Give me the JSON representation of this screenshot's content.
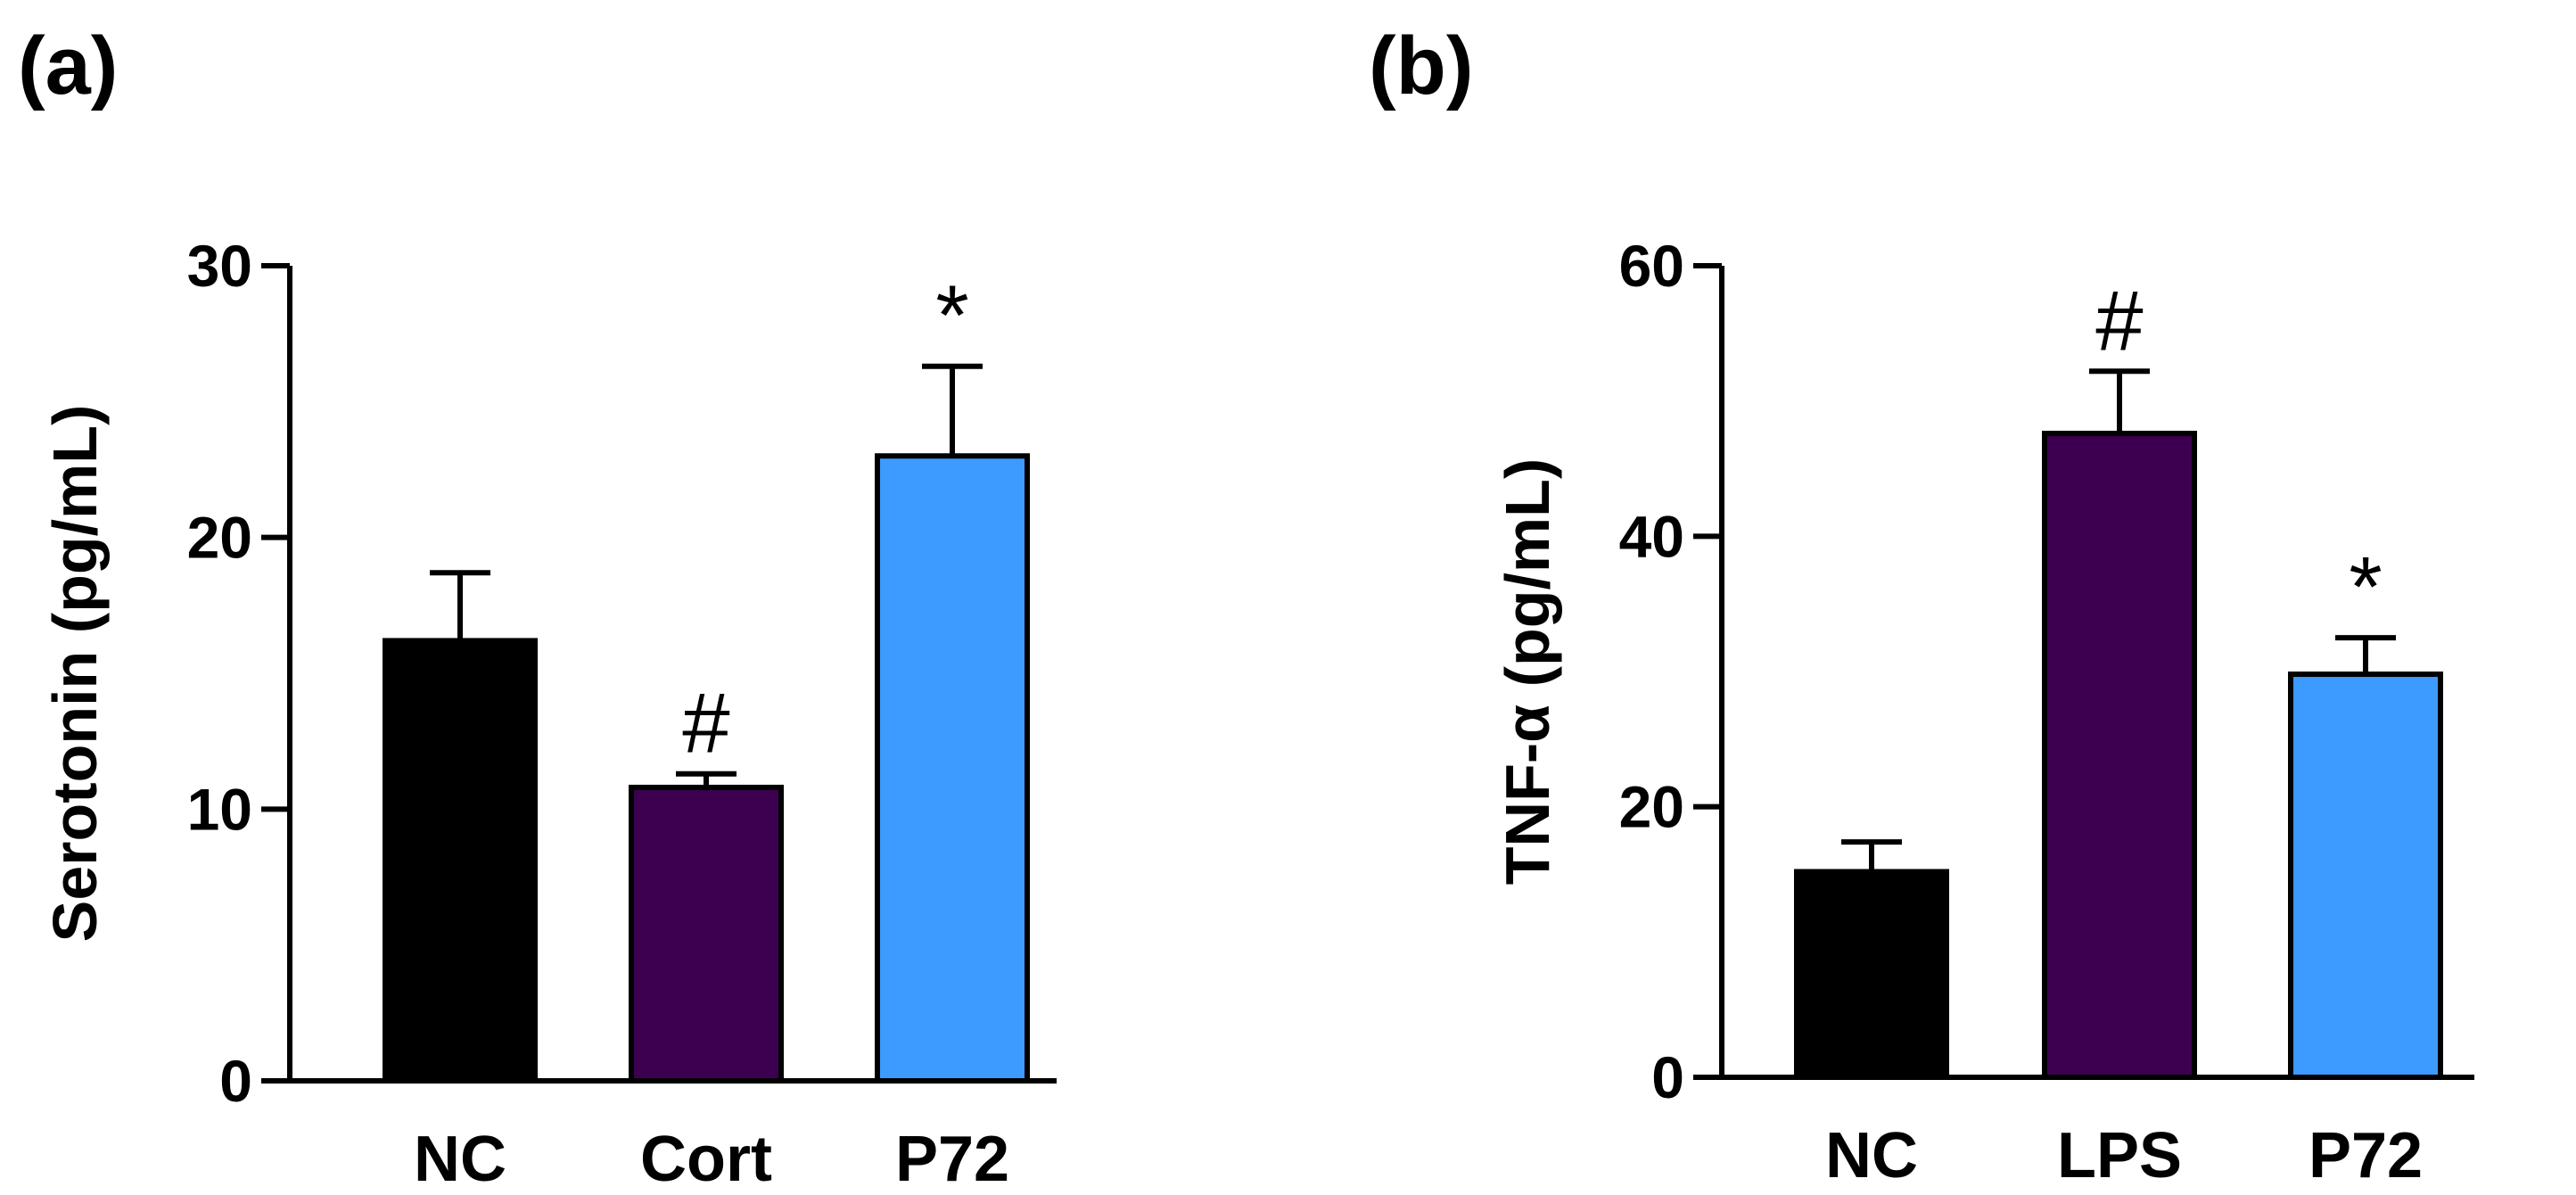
{
  "chart_data": [
    {
      "panel": "(a)",
      "type": "bar",
      "categories": [
        "NC",
        "Cort",
        "P72"
      ],
      "values": [
        16.2,
        10.8,
        23.0
      ],
      "errors": [
        2.5,
        0.5,
        3.3
      ],
      "colors": [
        "#000000",
        "#3d0050",
        "#3d9bff"
      ],
      "annotations": [
        "",
        "#",
        "*"
      ],
      "ylabel": "Serotonin (pg/mL)",
      "ylim": [
        0,
        30
      ],
      "yticks": [
        0,
        10,
        20,
        30
      ],
      "title": "",
      "grid": false
    },
    {
      "panel": "(b)",
      "type": "bar",
      "categories": [
        "NC",
        "LPS",
        "P72"
      ],
      "values": [
        15.2,
        47.6,
        29.8
      ],
      "errors": [
        2.2,
        4.6,
        2.7
      ],
      "colors": [
        "#000000",
        "#3d0050",
        "#3d9bff"
      ],
      "annotations": [
        "",
        "#",
        "*"
      ],
      "ylabel": "TNF-α (pg/mL)",
      "ylim": [
        0,
        60
      ],
      "yticks": [
        0,
        20,
        40,
        60
      ],
      "title": "",
      "grid": false
    }
  ]
}
